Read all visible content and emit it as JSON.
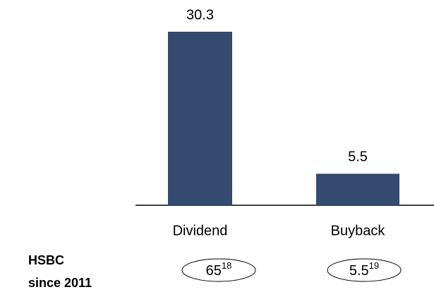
{
  "chart_data": {
    "type": "bar",
    "categories": [
      "Dividend",
      "Buyback"
    ],
    "values": [
      30.3,
      5.5
    ],
    "color": "#344a6e",
    "row_label": [
      "HSBC",
      "since 2011"
    ],
    "row_values": [
      {
        "text": "65",
        "ref": "18"
      },
      {
        "text": "5.5",
        "ref": "19"
      }
    ]
  }
}
